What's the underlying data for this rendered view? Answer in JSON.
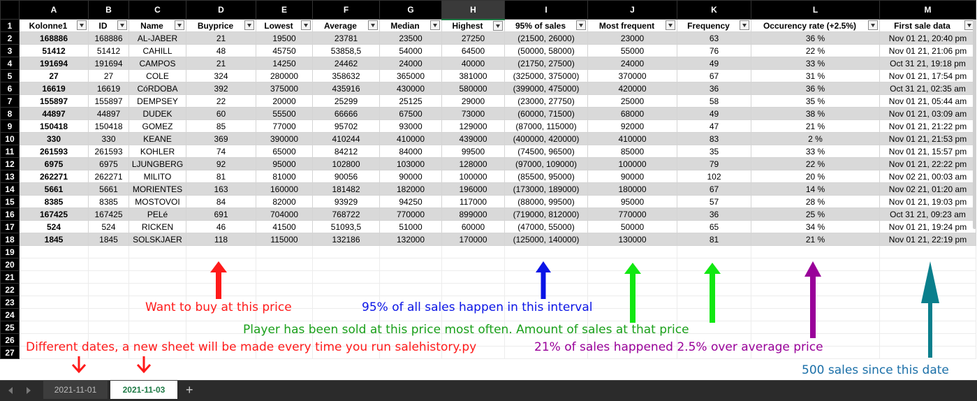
{
  "columns": [
    "A",
    "B",
    "C",
    "D",
    "E",
    "F",
    "G",
    "H",
    "I",
    "J",
    "K",
    "L",
    "M"
  ],
  "selected_column": "H",
  "headers": [
    "Kolonne1",
    "ID",
    "Name",
    "Buyprice",
    "Lowest",
    "Average",
    "Median",
    "Highest",
    "95% of sales",
    "Most frequent",
    "Frequency",
    "Occurency rate (+2.5%)",
    "First sale data"
  ],
  "rows": [
    [
      "168886",
      "168886",
      "AL-JABER",
      "21",
      "19500",
      "23781",
      "23500",
      "27250",
      "(21500, 26000)",
      "23000",
      "63",
      "36 %",
      "Nov 01 21, 20:40 pm"
    ],
    [
      "51412",
      "51412",
      "CAHILL",
      "48",
      "45750",
      "53858,5",
      "54000",
      "64500",
      "(50000, 58000)",
      "55000",
      "76",
      "22 %",
      "Nov 01 21, 21:06 pm"
    ],
    [
      "191694",
      "191694",
      "CAMPOS",
      "21",
      "14250",
      "24462",
      "24000",
      "40000",
      "(21750, 27500)",
      "24000",
      "49",
      "33 %",
      "Oct 31 21, 19:18 pm"
    ],
    [
      "27",
      "27",
      "COLE",
      "324",
      "280000",
      "358632",
      "365000",
      "381000",
      "(325000, 375000)",
      "370000",
      "67",
      "31 %",
      "Nov 01 21, 17:54 pm"
    ],
    [
      "16619",
      "16619",
      "CóRDOBA",
      "392",
      "375000",
      "435916",
      "430000",
      "580000",
      "(399000, 475000)",
      "420000",
      "36",
      "36 %",
      "Oct 31 21, 02:35 am"
    ],
    [
      "155897",
      "155897",
      "DEMPSEY",
      "22",
      "20000",
      "25299",
      "25125",
      "29000",
      "(23000, 27750)",
      "25000",
      "58",
      "35 %",
      "Nov 01 21, 05:44 am"
    ],
    [
      "44897",
      "44897",
      "DUDEK",
      "60",
      "55500",
      "66666",
      "67500",
      "73000",
      "(60000, 71500)",
      "68000",
      "49",
      "38 %",
      "Nov 01 21, 03:09 am"
    ],
    [
      "150418",
      "150418",
      "GOMEZ",
      "85",
      "77000",
      "95702",
      "93000",
      "129000",
      "(87000, 115000)",
      "92000",
      "47",
      "21 %",
      "Nov 01 21, 21:22 pm"
    ],
    [
      "330",
      "330",
      "KEANE",
      "369",
      "390000",
      "410244",
      "410000",
      "439000",
      "(400000, 420000)",
      "410000",
      "83",
      "2 %",
      "Nov 01 21, 21:53 pm"
    ],
    [
      "261593",
      "261593",
      "KOHLER",
      "74",
      "65000",
      "84212",
      "84000",
      "99500",
      "(74500, 96500)",
      "85000",
      "35",
      "33 %",
      "Nov 01 21, 15:57 pm"
    ],
    [
      "6975",
      "6975",
      "LJUNGBERG",
      "92",
      "95000",
      "102800",
      "103000",
      "128000",
      "(97000, 109000)",
      "100000",
      "79",
      "22 %",
      "Nov 01 21, 22:22 pm"
    ],
    [
      "262271",
      "262271",
      "MILITO",
      "81",
      "81000",
      "90056",
      "90000",
      "100000",
      "(85500, 95000)",
      "90000",
      "102",
      "20 %",
      "Nov 02 21, 00:03 am"
    ],
    [
      "5661",
      "5661",
      "MORIENTES",
      "163",
      "160000",
      "181482",
      "182000",
      "196000",
      "(173000, 189000)",
      "180000",
      "67",
      "14 %",
      "Nov 02 21, 01:20 am"
    ],
    [
      "8385",
      "8385",
      "MOSTOVOI",
      "84",
      "82000",
      "93929",
      "94250",
      "117000",
      "(88000, 99500)",
      "95000",
      "57",
      "28 %",
      "Nov 01 21, 19:03 pm"
    ],
    [
      "167425",
      "167425",
      "PELé",
      "691",
      "704000",
      "768722",
      "770000",
      "899000",
      "(719000, 812000)",
      "770000",
      "36",
      "25 %",
      "Oct 31 21, 09:23 am"
    ],
    [
      "524",
      "524",
      "RICKEN",
      "46",
      "41500",
      "51093,5",
      "51000",
      "60000",
      "(47000, 55000)",
      "50000",
      "65",
      "34 %",
      "Nov 01 21, 19:24 pm"
    ],
    [
      "1845",
      "1845",
      "SOLSKJAER",
      "118",
      "115000",
      "132186",
      "132000",
      "170000",
      "(125000, 140000)",
      "130000",
      "81",
      "21 %",
      "Nov 01 21, 22:19 pm"
    ]
  ],
  "empty_row_numbers": [
    "19",
    "20",
    "21",
    "22",
    "23",
    "24",
    "25",
    "26",
    "27"
  ],
  "annotations": {
    "buyprice": "Want to buy at this price",
    "interval": "95% of all sales happen in this interval",
    "most_frequent": "Player has been sold at this price most often. Amount of sales at that price",
    "occurency": "21% of sales happened 2.5% over average price",
    "dates": "Different dates, a new sheet will be made every time you run salehistory.py",
    "first_sale": "500 sales since this date"
  },
  "annotation_colors": {
    "red": "#ff1a1a",
    "blue": "#0a14e6",
    "green": "#12e812",
    "green_text": "#1aa01a",
    "purple": "#990099",
    "teal": "#0a7f8c",
    "teal_text": "#1a6fa8"
  },
  "tabs": [
    {
      "label": "2021-11-01",
      "active": false
    },
    {
      "label": "2021-11-03",
      "active": true
    }
  ],
  "add_sheet_label": "+",
  "icons": {
    "prev": "triangle-left-icon",
    "next": "triangle-right-icon",
    "filter": "dropdown-filter-icon"
  }
}
